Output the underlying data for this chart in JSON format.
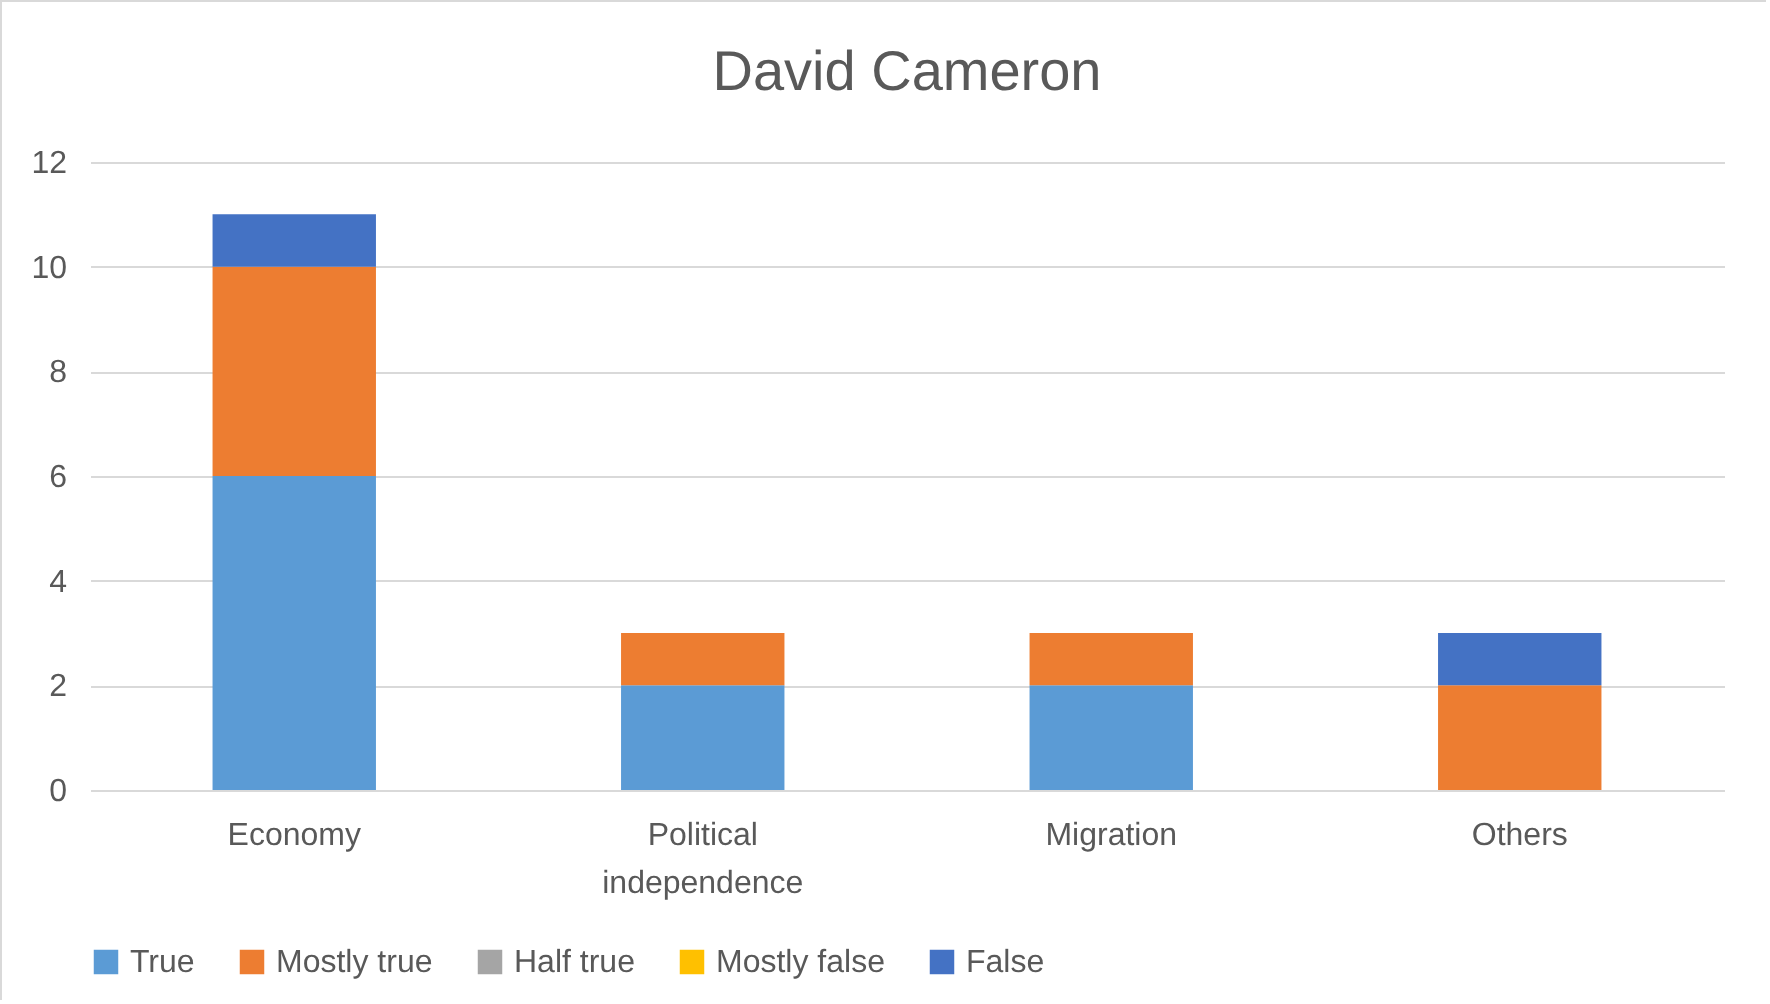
{
  "chart_data": {
    "type": "bar",
    "title": "David Cameron",
    "stacked": true,
    "categories": [
      "Economy",
      "Political independence",
      "Migration",
      "Others"
    ],
    "series": [
      {
        "name": "True",
        "color": "#5b9bd5",
        "values": [
          6,
          2,
          2,
          0
        ]
      },
      {
        "name": "Mostly true",
        "color": "#ed7d31",
        "values": [
          4,
          1,
          1,
          2
        ]
      },
      {
        "name": "Half true",
        "color": "#a5a5a5",
        "values": [
          0,
          0,
          0,
          0
        ]
      },
      {
        "name": "Mostly false",
        "color": "#ffc000",
        "values": [
          0,
          0,
          0,
          0
        ]
      },
      {
        "name": "False",
        "color": "#4472c4",
        "values": [
          1,
          0,
          0,
          1
        ]
      }
    ],
    "ylim": [
      0,
      12
    ],
    "yticks": [
      0,
      2,
      4,
      6,
      8,
      10,
      12
    ],
    "grid": "y",
    "legend": "bottom"
  }
}
